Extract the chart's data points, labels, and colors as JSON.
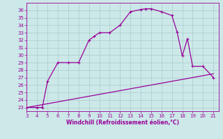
{
  "xlabel": "Windchill (Refroidissement éolien,°C)",
  "bg_color": "#cce8e8",
  "grid_color": "#aacccc",
  "line_color": "#990099",
  "xlim": [
    3,
    21.5
  ],
  "ylim": [
    22.5,
    37.0
  ],
  "xticks": [
    3,
    4,
    5,
    6,
    7,
    8,
    9,
    10,
    11,
    12,
    13,
    14,
    15,
    16,
    17,
    18,
    19,
    20,
    21
  ],
  "yticks": [
    23,
    24,
    25,
    26,
    27,
    28,
    29,
    30,
    31,
    32,
    33,
    34,
    35,
    36
  ],
  "curve1_x": [
    3,
    4,
    4.5,
    5,
    6,
    7,
    8,
    9,
    9.5,
    10,
    11,
    12,
    13,
    14,
    14.5,
    15,
    16,
    17,
    17.5,
    18,
    18.5,
    19,
    20,
    21
  ],
  "curve1_y": [
    23,
    23,
    23,
    26.5,
    29,
    29.0,
    29.0,
    32.0,
    32.5,
    33,
    33,
    34.0,
    35.8,
    36.1,
    36.2,
    36.2,
    35.8,
    35.3,
    33.1,
    29.9,
    32.2,
    28.5,
    28.5,
    27.0
  ],
  "curve2_x": [
    3,
    21
  ],
  "curve2_y": [
    23.0,
    27.5
  ],
  "marker": "+",
  "markersize": 3,
  "markeredgewidth": 0.8,
  "linewidth": 0.9,
  "tick_labelsize": 5.0,
  "xlabel_fontsize": 5.5
}
